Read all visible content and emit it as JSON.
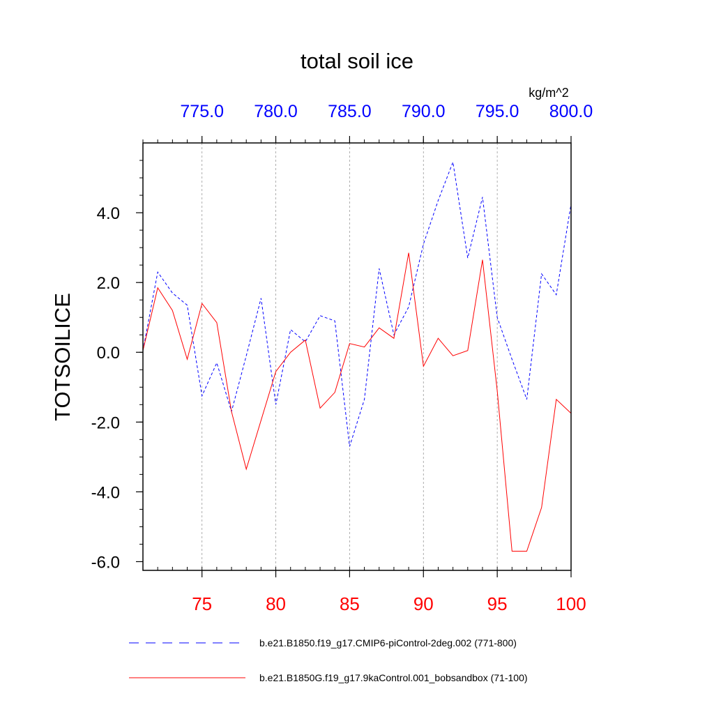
{
  "chart_data": {
    "type": "line",
    "title": "total soil ice",
    "units": "kg/m^2",
    "ylabel": "TOTSOILICE",
    "xlabel": "",
    "ylim": [
      -6.25,
      6.0
    ],
    "yticks": [
      "4.0",
      "2.0",
      "0.0",
      "-2.0",
      "-4.0",
      "-6.0"
    ],
    "ytick_values": [
      4.0,
      2.0,
      0.0,
      -2.0,
      -4.0,
      -6.0
    ],
    "top_axis": {
      "range": [
        771,
        800
      ],
      "ticks": [
        "775.0",
        "780.0",
        "785.0",
        "790.0",
        "795.0",
        "800.0"
      ],
      "tick_values": [
        775,
        780,
        785,
        790,
        795,
        800
      ],
      "color": "#0000ff"
    },
    "bottom_axis": {
      "range": [
        71,
        100
      ],
      "ticks": [
        "75",
        "80",
        "85",
        "90",
        "95",
        "100"
      ],
      "tick_values": [
        75,
        80,
        85,
        90,
        95,
        100
      ],
      "color": "#ff0000"
    },
    "grid": "vertical dashed at major ticks",
    "series": [
      {
        "name": "b.e21.B1850.f19_g17.CMIP6-piControl-2deg.002 (771-800)",
        "axis": "top",
        "color": "#0000ff",
        "dash": "dashed",
        "x": [
          771,
          772,
          773,
          774,
          775,
          776,
          777,
          778,
          779,
          780,
          781,
          782,
          783,
          784,
          785,
          786,
          787,
          788,
          789,
          790,
          791,
          792,
          793,
          794,
          795,
          796,
          797,
          798,
          799,
          800
        ],
        "values": [
          0.05,
          2.3,
          1.7,
          1.35,
          -1.25,
          -0.3,
          -1.7,
          -0.1,
          1.55,
          -1.5,
          0.65,
          0.3,
          1.05,
          0.9,
          -2.7,
          -1.35,
          2.4,
          0.5,
          1.3,
          3.1,
          4.35,
          5.45,
          2.7,
          4.45,
          1.0,
          -0.2,
          -1.35,
          2.25,
          1.65,
          4.25
        ]
      },
      {
        "name": "b.e21.B1850G.f19_g17.9kaControl.001_bobsandbox (71-100)",
        "axis": "bottom",
        "color": "#ff0000",
        "dash": "solid",
        "x": [
          71,
          72,
          73,
          74,
          75,
          76,
          77,
          78,
          79,
          80,
          81,
          82,
          83,
          84,
          85,
          86,
          87,
          88,
          89,
          90,
          91,
          92,
          93,
          94,
          95,
          96,
          97,
          98,
          99,
          100
        ],
        "values": [
          0.05,
          1.85,
          1.2,
          -0.2,
          1.4,
          0.85,
          -1.7,
          -3.35,
          -1.95,
          -0.55,
          0.0,
          0.35,
          -1.6,
          -1.15,
          0.25,
          0.15,
          0.7,
          0.4,
          2.85,
          -0.4,
          0.4,
          -0.1,
          0.05,
          2.65,
          -1.1,
          -5.7,
          -5.7,
          -4.45,
          -1.35,
          -1.75
        ]
      }
    ]
  }
}
